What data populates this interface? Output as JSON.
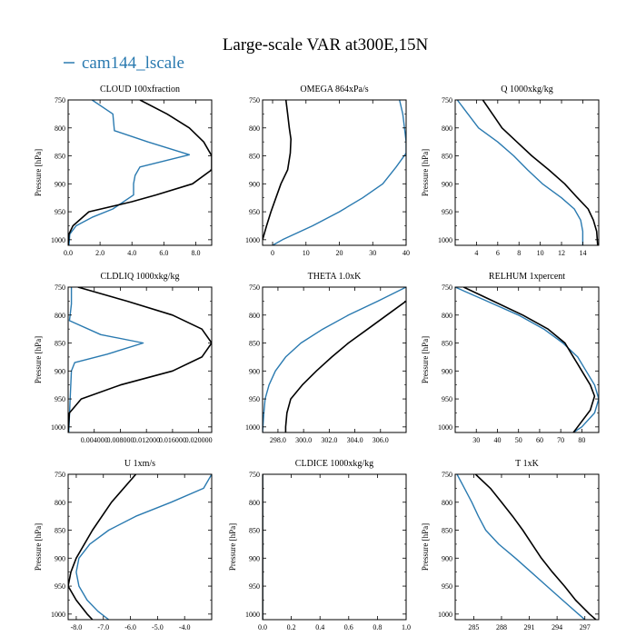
{
  "title": "Large-scale VAR at300E,15N",
  "legend": {
    "label": "cam144_lscale",
    "color": "#2a7ab0"
  },
  "colors": {
    "model": "#2a7ab0",
    "reference": "#000000"
  },
  "chart_data": [
    {
      "type": "line",
      "title": "CLOUD 100xfraction",
      "ylabel": "Pressure [hPa]",
      "xlim": [
        0,
        9
      ],
      "ylim": [
        1010,
        750
      ],
      "xticks": [
        0.0,
        2.0,
        4.0,
        6.0,
        8.0
      ],
      "xtick_labels": [
        "0.0",
        "2.0",
        "4.0",
        "6.0",
        "8.0"
      ],
      "yticks": [
        750,
        800,
        850,
        900,
        950,
        1000
      ],
      "series": [
        {
          "name": "cam144_lscale",
          "style": "model",
          "points": [
            [
              1.5,
              750
            ],
            [
              2.8,
              775
            ],
            [
              2.9,
              805
            ],
            [
              5.0,
              825
            ],
            [
              7.6,
              848
            ],
            [
              4.5,
              870
            ],
            [
              4.2,
              885
            ],
            [
              4.1,
              900
            ],
            [
              4.1,
              920
            ],
            [
              2.8,
              945
            ],
            [
              1.5,
              960
            ],
            [
              0.5,
              975
            ],
            [
              0.1,
              990
            ],
            [
              0.05,
              1010
            ]
          ]
        },
        {
          "name": "",
          "style": "reference",
          "points": [
            [
              4.5,
              750
            ],
            [
              6.2,
              775
            ],
            [
              7.6,
              800
            ],
            [
              8.5,
              825
            ],
            [
              9.0,
              850
            ],
            [
              9.0,
              875
            ],
            [
              7.8,
              900
            ],
            [
              5.5,
              920
            ],
            [
              4.0,
              932
            ],
            [
              1.3,
              950
            ],
            [
              0.3,
              975
            ],
            [
              0.05,
              990
            ],
            [
              0.0,
              1010
            ]
          ]
        }
      ]
    },
    {
      "type": "line",
      "title": "OMEGA 864xPa/s",
      "ylabel": "",
      "xlim": [
        -3,
        40
      ],
      "ylim": [
        1010,
        750
      ],
      "xticks": [
        0,
        10,
        20,
        30,
        40
      ],
      "xtick_labels": [
        "0",
        "10",
        "20",
        "30",
        "40"
      ],
      "yticks": [
        750,
        800,
        850,
        900,
        950,
        1000
      ],
      "series": [
        {
          "name": "cam144_lscale",
          "style": "model",
          "points": [
            [
              38,
              750
            ],
            [
              39,
              775
            ],
            [
              39.5,
              800
            ],
            [
              40,
              825
            ],
            [
              40,
              845
            ],
            [
              37,
              870
            ],
            [
              33,
              900
            ],
            [
              27,
              925
            ],
            [
              20,
              950
            ],
            [
              12,
              975
            ],
            [
              3,
              1000
            ],
            [
              0,
              1010
            ]
          ]
        },
        {
          "name": "",
          "style": "reference",
          "points": [
            [
              4,
              750
            ],
            [
              4.5,
              775
            ],
            [
              5,
              800
            ],
            [
              5.5,
              820
            ],
            [
              5.3,
              845
            ],
            [
              4.5,
              875
            ],
            [
              2.5,
              900
            ],
            [
              1,
              925
            ],
            [
              -0.5,
              950
            ],
            [
              -1.8,
              975
            ],
            [
              -3,
              1000
            ]
          ]
        }
      ]
    },
    {
      "type": "line",
      "title": "Q 1000xkg/kg",
      "ylabel": "Pressure [hPa]",
      "xlim": [
        2,
        15.5
      ],
      "ylim": [
        1010,
        750
      ],
      "xticks": [
        4,
        6,
        8,
        10,
        12,
        14
      ],
      "xtick_labels": [
        "4",
        "6",
        "8",
        "10",
        "12",
        "14"
      ],
      "yticks": [
        750,
        800,
        850,
        900,
        950,
        1000
      ],
      "series": [
        {
          "name": "cam144_lscale",
          "style": "model",
          "points": [
            [
              2.2,
              750
            ],
            [
              3.2,
              775
            ],
            [
              4.2,
              800
            ],
            [
              6,
              825
            ],
            [
              7.5,
              850
            ],
            [
              8.8,
              875
            ],
            [
              10.2,
              900
            ],
            [
              12,
              925
            ],
            [
              13.2,
              945
            ],
            [
              13.8,
              965
            ],
            [
              14,
              985
            ],
            [
              14,
              1010
            ]
          ]
        },
        {
          "name": "",
          "style": "reference",
          "points": [
            [
              4.6,
              750
            ],
            [
              5.5,
              775
            ],
            [
              6.4,
              800
            ],
            [
              7.8,
              825
            ],
            [
              9.2,
              850
            ],
            [
              10.8,
              875
            ],
            [
              12.3,
              900
            ],
            [
              13.5,
              925
            ],
            [
              14.5,
              945
            ],
            [
              15,
              965
            ],
            [
              15.3,
              985
            ],
            [
              15.4,
              1010
            ]
          ]
        }
      ]
    },
    {
      "type": "line",
      "title": "CLDLIQ 1000xkg/kg",
      "ylabel": "Pressure [hPa]",
      "xlim": [
        0,
        0.022
      ],
      "ylim": [
        1010,
        750
      ],
      "xticks": [
        0.004,
        0.008,
        0.012,
        0.016,
        0.02
      ],
      "xtick_labels": [
        "0.004000",
        "0.008000",
        "0.012000",
        "0.016000",
        "0.020000"
      ],
      "yticks": [
        750,
        800,
        850,
        900,
        950,
        1000
      ],
      "series": [
        {
          "name": "cam144_lscale",
          "style": "model",
          "points": [
            [
              0.0005,
              750
            ],
            [
              0.0005,
              780
            ],
            [
              0.0003,
              800
            ],
            [
              0.0002,
              810
            ],
            [
              0.005,
              835
            ],
            [
              0.0115,
              850
            ],
            [
              0.006,
              870
            ],
            [
              0.001,
              885
            ],
            [
              0.0005,
              900
            ],
            [
              0.0003,
              950
            ],
            [
              0.0001,
              1010
            ]
          ]
        },
        {
          "name": "",
          "style": "reference",
          "points": [
            [
              0.0015,
              750
            ],
            [
              0.009,
              775
            ],
            [
              0.016,
              800
            ],
            [
              0.0205,
              825
            ],
            [
              0.022,
              850
            ],
            [
              0.0205,
              875
            ],
            [
              0.016,
              900
            ],
            [
              0.008,
              925
            ],
            [
              0.002,
              950
            ],
            [
              0.0002,
              975
            ],
            [
              0.0,
              1010
            ]
          ]
        }
      ]
    },
    {
      "type": "line",
      "title": "THETA 1.0xK",
      "ylabel": "",
      "xlim": [
        296.8,
        308
      ],
      "ylim": [
        1010,
        750
      ],
      "xticks": [
        298.0,
        300.0,
        302.0,
        304.0,
        306.0
      ],
      "xtick_labels": [
        "298.0",
        "300.0",
        "302.0",
        "304.0",
        "306.0"
      ],
      "yticks": [
        750,
        800,
        850,
        900,
        950,
        1000
      ],
      "series": [
        {
          "name": "cam144_lscale",
          "style": "model",
          "points": [
            [
              308,
              750
            ],
            [
              305.8,
              775
            ],
            [
              303.5,
              800
            ],
            [
              301.5,
              825
            ],
            [
              299.8,
              850
            ],
            [
              298.6,
              875
            ],
            [
              297.8,
              900
            ],
            [
              297.3,
              925
            ],
            [
              297.0,
              950
            ],
            [
              296.9,
              975
            ],
            [
              296.8,
              1010
            ]
          ]
        },
        {
          "name": "",
          "style": "reference",
          "points": [
            [
              308,
              775
            ],
            [
              306.5,
              800
            ],
            [
              305,
              825
            ],
            [
              303.5,
              850
            ],
            [
              302.2,
              875
            ],
            [
              301,
              900
            ],
            [
              299.9,
              925
            ],
            [
              299,
              950
            ],
            [
              298.7,
              975
            ],
            [
              298.6,
              1000
            ],
            [
              298.6,
              1010
            ]
          ]
        }
      ]
    },
    {
      "type": "line",
      "title": "RELHUM 1xpercent",
      "ylabel": "Pressure [hPa]",
      "xlim": [
        20,
        88
      ],
      "ylim": [
        1010,
        750
      ],
      "xticks": [
        30,
        40,
        50,
        60,
        70,
        80
      ],
      "xtick_labels": [
        "30",
        "40",
        "50",
        "60",
        "70",
        "80"
      ],
      "yticks": [
        750,
        800,
        850,
        900,
        950,
        1000
      ],
      "series": [
        {
          "name": "cam144_lscale",
          "style": "model",
          "points": [
            [
              20,
              750
            ],
            [
              35,
              775
            ],
            [
              50,
              800
            ],
            [
              62,
              825
            ],
            [
              71,
              850
            ],
            [
              78,
              875
            ],
            [
              82,
              900
            ],
            [
              86,
              925
            ],
            [
              88,
              950
            ],
            [
              86,
              975
            ],
            [
              80,
              1000
            ],
            [
              76,
              1010
            ]
          ]
        },
        {
          "name": "",
          "style": "reference",
          "points": [
            [
              24,
              750
            ],
            [
              38,
              775
            ],
            [
              52,
              800
            ],
            [
              64,
              825
            ],
            [
              72,
              850
            ],
            [
              76,
              875
            ],
            [
              80,
              900
            ],
            [
              84,
              925
            ],
            [
              86,
              945
            ],
            [
              84,
              970
            ],
            [
              78,
              1000
            ],
            [
              76,
              1010
            ]
          ]
        }
      ]
    },
    {
      "type": "line",
      "title": "U 1xm/s",
      "ylabel": "Pressure [hPa]",
      "xlim": [
        -8.3,
        -3.0
      ],
      "ylim": [
        1010,
        750
      ],
      "xticks": [
        -8.0,
        -7.0,
        -6.0,
        -5.0,
        -4.0
      ],
      "xtick_labels": [
        "-8.0",
        "-7.0",
        "-6.0",
        "-5.0",
        "-4.0"
      ],
      "yticks": [
        750,
        800,
        850,
        900,
        950,
        1000
      ],
      "series": [
        {
          "name": "cam144_lscale",
          "style": "model",
          "points": [
            [
              -3.0,
              750
            ],
            [
              -3.3,
              775
            ],
            [
              -4.5,
              800
            ],
            [
              -5.8,
              825
            ],
            [
              -6.8,
              850
            ],
            [
              -7.5,
              875
            ],
            [
              -7.9,
              900
            ],
            [
              -8.0,
              925
            ],
            [
              -7.9,
              950
            ],
            [
              -7.6,
              975
            ],
            [
              -7.2,
              995
            ],
            [
              -6.8,
              1010
            ]
          ]
        },
        {
          "name": "",
          "style": "reference",
          "points": [
            [
              -5.8,
              750
            ],
            [
              -6.7,
              800
            ],
            [
              -7.4,
              850
            ],
            [
              -8.0,
              900
            ],
            [
              -8.2,
              925
            ],
            [
              -8.3,
              950
            ],
            [
              -8.0,
              975
            ],
            [
              -7.6,
              1000
            ],
            [
              -7.4,
              1010
            ]
          ]
        }
      ]
    },
    {
      "type": "line",
      "title": "CLDICE 1000xkg/kg",
      "ylabel": "Pressure [hPa]",
      "xlim": [
        0,
        1
      ],
      "ylim": [
        1010,
        750
      ],
      "xticks": [
        0.0,
        0.2,
        0.4,
        0.6,
        0.8,
        1.0
      ],
      "xtick_labels": [
        "0.0",
        "0.2",
        "0.4",
        "0.6",
        "0.8",
        "1.0"
      ],
      "yticks": [
        750,
        800,
        850,
        900,
        950,
        1000
      ],
      "series": [
        {
          "name": "cam144_lscale",
          "style": "model",
          "points": [
            [
              0,
              750
            ],
            [
              0,
              1010
            ]
          ]
        },
        {
          "name": "",
          "style": "reference",
          "points": [
            [
              0,
              750
            ],
            [
              0,
              1010
            ]
          ]
        }
      ]
    },
    {
      "type": "line",
      "title": "T 1xK",
      "ylabel": "Pressure [hPa]",
      "xlim": [
        283,
        298.5
      ],
      "ylim": [
        1010,
        750
      ],
      "xticks": [
        285,
        288,
        291,
        294,
        297
      ],
      "xtick_labels": [
        "285",
        "288",
        "291",
        "294",
        "297"
      ],
      "yticks": [
        750,
        800,
        850,
        900,
        950,
        1000
      ],
      "series": [
        {
          "name": "cam144_lscale",
          "style": "model",
          "points": [
            [
              283.2,
              750
            ],
            [
              284,
              775
            ],
            [
              284.8,
              800
            ],
            [
              285.5,
              825
            ],
            [
              286.3,
              850
            ],
            [
              287.7,
              875
            ],
            [
              289.5,
              900
            ],
            [
              291.2,
              925
            ],
            [
              292.9,
              950
            ],
            [
              294.6,
              975
            ],
            [
              296.3,
              1000
            ],
            [
              297,
              1010
            ]
          ]
        },
        {
          "name": "",
          "style": "reference",
          "points": [
            [
              285.2,
              750
            ],
            [
              286.8,
              775
            ],
            [
              288,
              800
            ],
            [
              289.2,
              825
            ],
            [
              290.3,
              850
            ],
            [
              291.3,
              875
            ],
            [
              292.3,
              900
            ],
            [
              293.5,
              925
            ],
            [
              294.8,
              950
            ],
            [
              296,
              975
            ],
            [
              297.5,
              1000
            ],
            [
              298.2,
              1010
            ]
          ]
        }
      ]
    }
  ]
}
